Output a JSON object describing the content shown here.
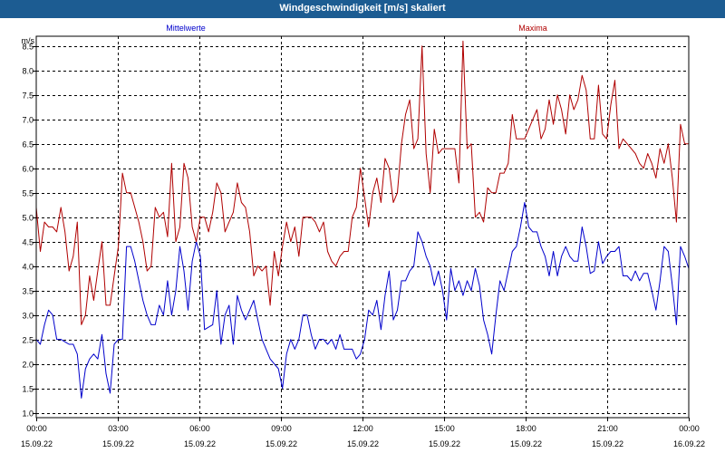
{
  "window_title": "Windgeschwindigkeit [m/s] skaliert",
  "colors": {
    "titlebar": "#1c5c92",
    "mittelwerte": "#0000cc",
    "maxima": "#b00000"
  },
  "chart_data": {
    "type": "line",
    "title": "Windgeschwindigkeit [m/s] skaliert",
    "ylabel": "m/s",
    "ylim": [
      0.9,
      8.7
    ],
    "xlim_hours": [
      0,
      24
    ],
    "grid": true,
    "y_ticks": [
      "1.0",
      "1.5",
      "2.0",
      "2.5",
      "3.0",
      "3.5",
      "4.0",
      "4.5",
      "5.0",
      "5.5",
      "6.0",
      "6.5",
      "7.0",
      "7.5",
      "8.0",
      "8.5"
    ],
    "x_ticks": [
      {
        "time": "00:00",
        "date": "15.09.22"
      },
      {
        "time": "03:00",
        "date": "15.09.22"
      },
      {
        "time": "06:00",
        "date": "15.09.22"
      },
      {
        "time": "09:00",
        "date": "15.09.22"
      },
      {
        "time": "12:00",
        "date": "15.09.22"
      },
      {
        "time": "15:00",
        "date": "15.09.22"
      },
      {
        "time": "18:00",
        "date": "15.09.22"
      },
      {
        "time": "21:00",
        "date": "15.09.22"
      },
      {
        "time": "00:00",
        "date": "16.09.22"
      }
    ],
    "series": [
      {
        "name": "Mittelwerte",
        "color": "#0000cc",
        "values": [
          2.5,
          2.4,
          2.8,
          3.1,
          3.0,
          2.5,
          2.5,
          2.45,
          2.4,
          2.4,
          2.2,
          1.3,
          1.9,
          2.1,
          2.2,
          2.1,
          2.6,
          1.8,
          1.4,
          2.4,
          2.5,
          2.5,
          4.4,
          4.4,
          4.1,
          3.7,
          3.3,
          3.0,
          2.8,
          2.8,
          3.2,
          3.0,
          3.7,
          3.0,
          3.5,
          4.4,
          3.9,
          3.1,
          4.1,
          4.5,
          4.2,
          2.7,
          2.75,
          2.8,
          3.5,
          2.4,
          3.0,
          3.2,
          2.4,
          3.4,
          3.1,
          2.9,
          3.1,
          3.3,
          2.9,
          2.5,
          2.3,
          2.1,
          2.0,
          1.9,
          1.5,
          2.2,
          2.5,
          2.3,
          2.5,
          3.0,
          3.0,
          2.6,
          2.3,
          2.5,
          2.5,
          2.4,
          2.5,
          2.3,
          2.6,
          2.3,
          2.3,
          2.3,
          2.1,
          2.2,
          2.5,
          3.1,
          3.0,
          3.3,
          2.7,
          3.4,
          3.9,
          2.9,
          3.1,
          3.7,
          3.7,
          3.9,
          4.0,
          4.7,
          4.5,
          4.2,
          4.0,
          3.6,
          3.9,
          3.5,
          2.9,
          3.95,
          3.5,
          3.7,
          3.4,
          3.7,
          3.5,
          3.95,
          3.6,
          2.9,
          2.6,
          2.2,
          3.0,
          3.7,
          3.5,
          3.9,
          4.3,
          4.4,
          4.8,
          5.3,
          4.8,
          4.7,
          4.7,
          4.4,
          4.2,
          3.8,
          4.3,
          3.8,
          4.2,
          4.4,
          4.2,
          4.1,
          4.1,
          4.8,
          4.4,
          3.85,
          3.9,
          4.5,
          4.05,
          4.2,
          4.3,
          4.3,
          4.4,
          3.8,
          3.8,
          3.7,
          3.9,
          3.7,
          3.85,
          3.85,
          3.5,
          3.1,
          3.7,
          4.4,
          4.3,
          3.6,
          2.8,
          4.4,
          4.2,
          3.95
        ]
      },
      {
        "name": "Maxima",
        "color": "#b00000",
        "values": [
          5.2,
          4.3,
          4.9,
          4.8,
          4.8,
          4.7,
          5.2,
          4.7,
          3.9,
          4.2,
          4.9,
          2.8,
          3.0,
          3.8,
          3.3,
          3.9,
          4.5,
          3.2,
          3.2,
          3.8,
          4.4,
          5.9,
          5.5,
          5.5,
          5.2,
          4.9,
          4.5,
          3.9,
          4.0,
          5.2,
          5.0,
          5.1,
          4.6,
          6.1,
          4.5,
          4.8,
          6.1,
          5.8,
          4.8,
          4.5,
          5.0,
          5.0,
          4.7,
          5.1,
          5.7,
          5.5,
          4.7,
          4.9,
          5.1,
          5.7,
          5.3,
          5.2,
          4.7,
          3.8,
          4.0,
          3.9,
          4.0,
          3.2,
          4.3,
          3.8,
          4.4,
          4.9,
          4.5,
          4.8,
          4.2,
          5.0,
          5.0,
          5.0,
          4.9,
          4.7,
          4.9,
          4.3,
          4.1,
          4.0,
          4.2,
          4.3,
          4.3,
          5.0,
          5.2,
          6.0,
          5.4,
          4.8,
          5.5,
          5.8,
          5.3,
          6.2,
          6.0,
          5.3,
          5.5,
          6.5,
          7.1,
          7.4,
          6.4,
          6.6,
          8.5,
          6.3,
          5.5,
          6.8,
          6.3,
          6.4,
          6.4,
          6.4,
          6.4,
          5.7,
          8.6,
          6.4,
          6.5,
          5.0,
          5.1,
          4.9,
          5.6,
          5.5,
          5.5,
          5.9,
          5.9,
          6.1,
          7.1,
          6.6,
          6.6,
          6.6,
          6.8,
          7.0,
          7.2,
          6.6,
          6.8,
          7.4,
          6.9,
          7.5,
          7.2,
          6.7,
          7.5,
          7.2,
          7.4,
          7.9,
          7.6,
          6.6,
          6.6,
          7.7,
          6.7,
          6.6,
          7.3,
          7.8,
          6.4,
          6.6,
          6.5,
          6.4,
          6.3,
          6.1,
          6.0,
          6.3,
          6.1,
          5.8,
          6.4,
          6.1,
          6.5,
          5.8,
          4.9,
          6.9,
          6.5,
          6.5
        ]
      }
    ]
  }
}
